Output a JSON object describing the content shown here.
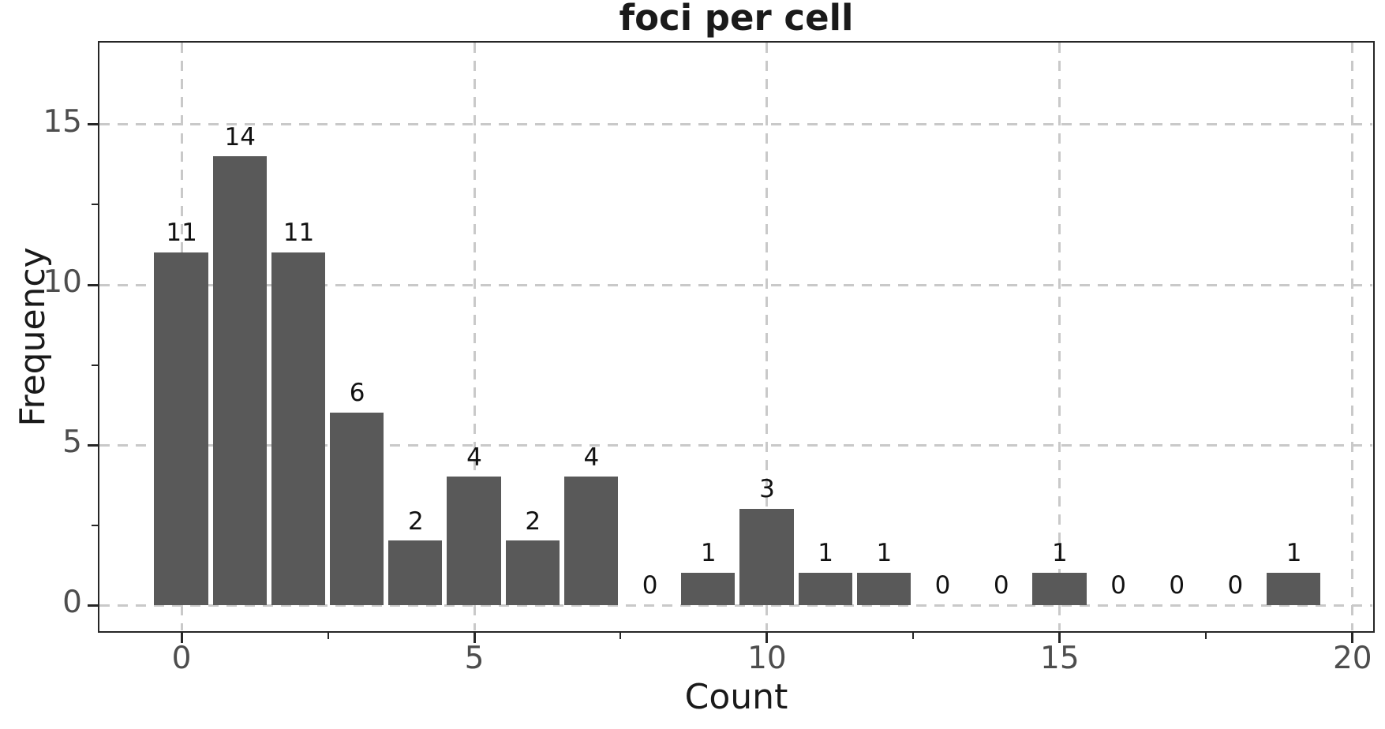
{
  "chart_data": {
    "type": "bar",
    "title": "foci per cell",
    "xlabel": "Count",
    "ylabel": "Frequency",
    "categories": [
      0,
      1,
      2,
      3,
      4,
      5,
      6,
      7,
      8,
      9,
      10,
      11,
      12,
      13,
      14,
      15,
      16,
      17,
      18,
      19
    ],
    "values": [
      11,
      14,
      11,
      6,
      2,
      4,
      2,
      4,
      0,
      1,
      3,
      1,
      1,
      0,
      0,
      1,
      0,
      0,
      0,
      1
    ],
    "bar_value_labels": [
      "11",
      "14",
      "11",
      "6",
      "2",
      "4",
      "2",
      "4",
      "0",
      "1",
      "3",
      "1",
      "1",
      "0",
      "0",
      "1",
      "0",
      "0",
      "0",
      "1"
    ],
    "x_ticks": [
      0,
      5,
      10,
      15,
      20
    ],
    "x_tick_labels": [
      "0",
      "5",
      "10",
      "15",
      "20"
    ],
    "x_minor_ticks": [
      2.5,
      7.5,
      12.5,
      17.5
    ],
    "y_ticks": [
      0,
      5,
      10,
      15
    ],
    "y_tick_labels": [
      "0",
      "5",
      "10",
      "15"
    ],
    "y_minor_ticks": [
      2.5,
      7.5,
      12.5
    ],
    "xlim": [
      -1.43,
      20.38
    ],
    "ylim": [
      -0.86,
      17.61
    ],
    "bar_width_units": 0.92,
    "grid": "dashed, both axes, major ticks only",
    "legend_position": "none",
    "colors": {
      "bar_fill": "#595959",
      "grid": "#c9c9c9",
      "spine": "#262626",
      "tick_mark": "#262626",
      "tick_label": "#4d4d4d",
      "title_text": "#1a1a1a",
      "axis_label_text": "#1a1a1a",
      "bar_label_text": "#111111",
      "background": "#ffffff"
    }
  }
}
